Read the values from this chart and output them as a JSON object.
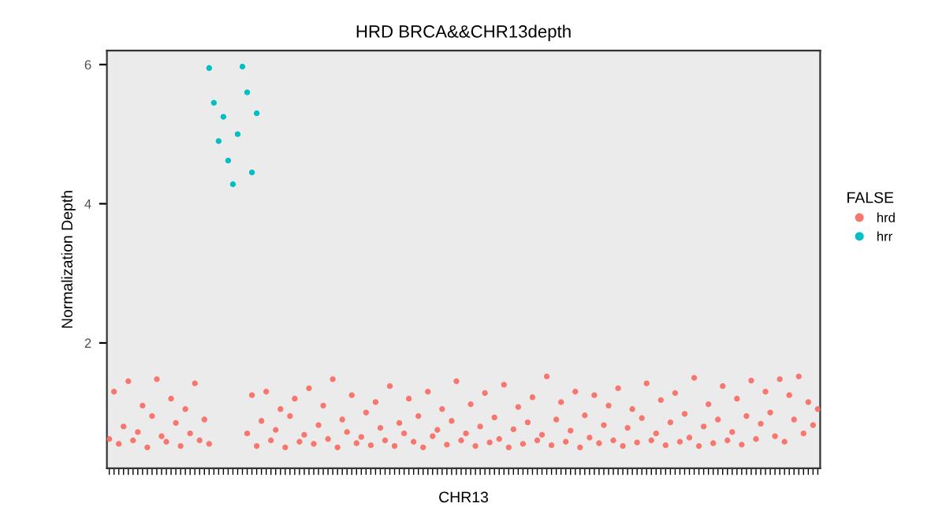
{
  "chart_data": {
    "type": "scatter",
    "title": "HRD BRCA&&CHR13depth",
    "xlabel": "CHR13",
    "ylabel": "Normalization Depth",
    "legend_title": "FALSE",
    "categories": [
      null,
      null,
      null,
      null,
      null,
      null,
      null,
      null,
      null,
      null,
      null,
      null,
      null,
      null,
      null,
      null,
      null,
      null,
      null,
      null,
      null,
      null,
      null,
      null,
      null,
      null,
      null,
      null,
      null,
      null,
      null,
      null,
      null,
      null,
      null,
      null,
      null,
      null,
      null,
      null,
      null,
      null,
      null,
      null,
      null,
      null,
      null,
      null,
      null,
      null,
      null,
      null,
      null,
      null,
      null,
      null,
      null,
      null,
      null,
      null,
      null,
      null,
      null,
      null,
      null,
      null,
      null,
      null,
      null,
      null,
      null,
      null,
      null,
      null,
      null,
      null,
      null,
      null,
      null,
      null,
      null,
      null,
      null,
      null,
      null,
      null,
      null,
      null,
      null,
      null,
      null,
      null,
      null,
      null,
      null,
      null,
      null,
      null,
      null,
      null,
      null,
      null,
      null,
      null,
      null,
      null,
      null,
      null,
      null,
      null,
      null,
      null,
      null,
      null,
      null,
      null,
      null,
      null,
      null,
      null,
      null,
      null,
      null,
      null,
      null,
      null,
      null,
      null,
      null,
      null,
      null,
      null,
      null,
      null,
      null,
      null,
      null,
      null,
      null,
      null,
      null,
      null,
      null,
      null,
      null,
      null,
      null,
      null,
      null,
      null
    ],
    "series": [
      {
        "name": "hrd",
        "color": "#f8766d",
        "values": [
          0.62,
          1.3,
          0.55,
          0.8,
          1.45,
          0.6,
          0.72,
          1.1,
          0.5,
          0.95,
          1.48,
          0.66,
          0.58,
          1.2,
          0.85,
          0.52,
          1.05,
          0.7,
          1.42,
          0.6,
          0.9,
          0.55,
          null,
          null,
          null,
          null,
          null,
          null,
          null,
          0.7,
          1.25,
          0.52,
          0.88,
          1.3,
          0.6,
          0.75,
          1.05,
          0.5,
          0.95,
          1.2,
          0.58,
          0.68,
          1.35,
          0.55,
          0.82,
          1.1,
          0.62,
          1.48,
          0.5,
          0.9,
          0.72,
          1.25,
          0.56,
          0.65,
          1.0,
          0.53,
          1.15,
          0.78,
          0.6,
          1.38,
          0.52,
          0.85,
          0.7,
          1.2,
          0.58,
          0.95,
          0.5,
          1.3,
          0.66,
          0.75,
          1.05,
          0.54,
          0.88,
          1.45,
          0.6,
          0.7,
          1.12,
          0.52,
          0.8,
          1.28,
          0.57,
          0.93,
          0.62,
          1.4,
          0.5,
          0.76,
          1.08,
          0.55,
          0.86,
          1.22,
          0.6,
          0.68,
          1.52,
          0.53,
          0.9,
          1.15,
          0.58,
          0.74,
          1.3,
          0.5,
          0.96,
          0.64,
          1.25,
          0.56,
          0.82,
          1.1,
          0.6,
          1.35,
          0.52,
          0.78,
          1.05,
          0.57,
          0.92,
          1.42,
          0.6,
          0.7,
          1.18,
          0.53,
          0.86,
          1.28,
          0.58,
          0.98,
          0.64,
          1.5,
          0.52,
          0.8,
          1.12,
          0.56,
          0.9,
          1.38,
          0.6,
          0.72,
          1.2,
          0.54,
          0.95,
          1.46,
          0.62,
          0.84,
          1.3,
          1.0,
          0.66,
          1.48,
          0.58,
          1.25,
          0.9,
          1.52,
          0.7,
          1.15,
          0.82,
          1.05
        ]
      },
      {
        "name": "hrr",
        "color": "#00bfc4",
        "values": [
          null,
          null,
          null,
          null,
          null,
          null,
          null,
          null,
          null,
          null,
          null,
          null,
          null,
          null,
          null,
          null,
          null,
          null,
          null,
          null,
          null,
          5.95,
          5.45,
          4.9,
          5.25,
          4.62,
          4.28,
          5.0,
          5.97,
          5.6,
          4.45,
          5.3,
          null,
          null,
          null,
          null,
          null,
          null,
          null,
          null,
          null,
          null,
          null,
          null,
          null,
          null,
          null,
          null,
          null,
          null,
          null,
          null,
          null,
          null,
          null,
          null,
          null,
          null,
          null,
          null,
          null,
          null,
          null,
          null,
          null,
          null,
          null,
          null,
          null,
          null,
          null,
          null,
          null,
          null,
          null,
          null,
          null,
          null,
          null,
          null,
          null,
          null,
          null,
          null,
          null,
          null,
          null,
          null,
          null,
          null,
          null,
          null,
          null,
          null,
          null,
          null,
          null,
          null,
          null,
          null,
          null,
          null,
          null,
          null,
          null,
          null,
          null,
          null,
          null,
          null,
          null,
          null,
          null,
          null,
          null,
          null,
          null,
          null,
          null,
          null,
          null,
          null,
          null,
          null,
          null,
          null,
          null,
          null,
          null,
          null,
          null,
          null,
          null,
          null,
          null,
          null,
          null,
          null,
          null,
          null,
          null,
          null,
          null,
          null,
          null,
          null,
          null,
          null,
          null,
          null
        ]
      }
    ],
    "ylim": [
      0.2,
      6.2
    ],
    "yticks": [
      2,
      4,
      6
    ],
    "marker": "circle",
    "legend": "right"
  }
}
